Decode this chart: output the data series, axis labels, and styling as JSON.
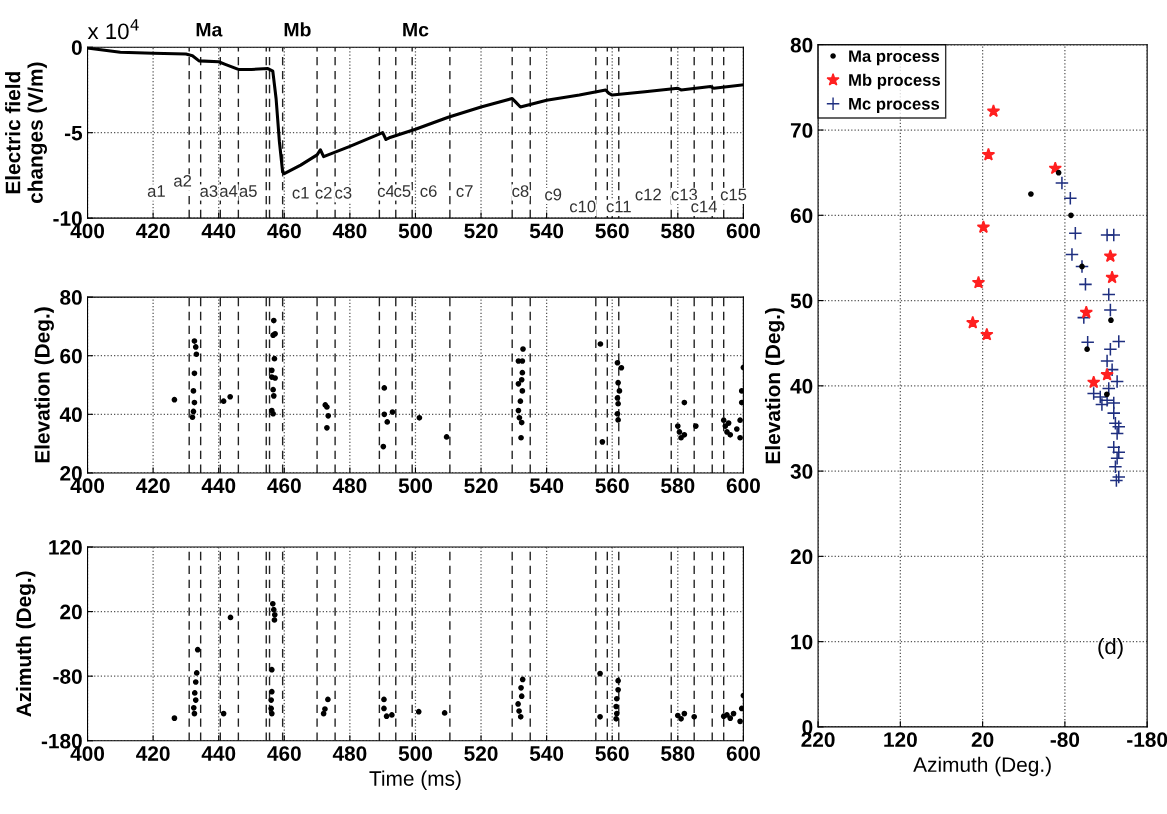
{
  "chart_data": [
    {
      "type": "line",
      "ylabel": "Electric field\nchanges (V/m)",
      "xlim": [
        400,
        600
      ],
      "xticks": [
        400,
        420,
        440,
        460,
        480,
        500,
        520,
        540,
        560,
        580,
        600
      ],
      "ylim": [
        -10,
        0
      ],
      "yticks": [
        -10,
        -5,
        0
      ],
      "grid": true,
      "line_style": "solid",
      "annotations": [
        "x 10$^{4}$",
        "Ma",
        "Mb",
        "Mc",
        {
          "text": "a1",
          "x": 421,
          "y": -8.5
        },
        {
          "text": "a2",
          "x": 429,
          "y": -7.9
        },
        {
          "text": "a3",
          "x": 437,
          "y": -8.5
        },
        {
          "text": "a4",
          "x": 443,
          "y": -8.5
        },
        {
          "text": "a5",
          "x": 449,
          "y": -8.5
        },
        {
          "text": "c1",
          "x": 465,
          "y": -8.6
        },
        {
          "text": "c2",
          "x": 472,
          "y": -8.6
        },
        {
          "text": "c3",
          "x": 478,
          "y": -8.6
        },
        {
          "text": "c4",
          "x": 491,
          "y": -8.5
        },
        {
          "text": "c5",
          "x": 496,
          "y": -8.5
        },
        {
          "text": "c6",
          "x": 504,
          "y": -8.5
        },
        {
          "text": "c7",
          "x": 515,
          "y": -8.5
        },
        {
          "text": "c8",
          "x": 532,
          "y": -8.5
        },
        {
          "text": "c9",
          "x": 542,
          "y": -8.7
        },
        {
          "text": "c10",
          "x": 551,
          "y": -9.4
        },
        {
          "text": "c11",
          "x": 562,
          "y": -9.4
        },
        {
          "text": "c12",
          "x": 571,
          "y": -8.7
        },
        {
          "text": "c13",
          "x": 582,
          "y": -8.7
        },
        {
          "text": "c14",
          "x": 588,
          "y": -9.4
        },
        {
          "text": "c15",
          "x": 597,
          "y": -8.7
        }
      ],
      "series": [
        {
          "color": "#000000",
          "x": [
            400,
            410,
            420,
            430,
            432,
            434,
            440,
            442,
            446,
            450,
            455,
            456.5,
            457.5,
            458.5,
            459.5,
            460,
            465,
            470,
            471,
            472,
            480,
            490,
            491,
            492,
            500,
            510,
            520,
            529.5,
            530.5,
            532,
            540,
            550,
            558,
            559,
            560,
            570,
            580,
            581,
            590,
            591,
            600
          ],
          "values": [
            -0.05,
            -0.3,
            -0.35,
            -0.4,
            -0.5,
            -0.8,
            -0.85,
            -1.0,
            -1.3,
            -1.3,
            -1.25,
            -1.4,
            -3.0,
            -5.5,
            -7.3,
            -7.4,
            -6.9,
            -6.3,
            -6.0,
            -6.4,
            -5.8,
            -5.0,
            -5.4,
            -5.3,
            -4.8,
            -4.1,
            -3.5,
            -3.0,
            -3.2,
            -3.5,
            -3.1,
            -2.8,
            -2.5,
            -2.7,
            -2.8,
            -2.6,
            -2.4,
            -2.5,
            -2.3,
            -2.4,
            -2.2
          ]
        }
      ],
      "ref_lines": [
        {
          "axis": "x",
          "value": 431,
          "line_style": "dashed"
        },
        {
          "axis": "x",
          "value": 434.5,
          "line_style": "dashed"
        },
        {
          "axis": "x",
          "value": 440.5,
          "line_style": "dashed"
        },
        {
          "axis": "x",
          "value": 446,
          "line_style": "dashed"
        },
        {
          "axis": "x",
          "value": 454.5,
          "line_style": "dashed"
        },
        {
          "axis": "x",
          "value": 455.5,
          "line_style": "dashed"
        },
        {
          "axis": "x",
          "value": 459.5,
          "line_style": "dashed"
        },
        {
          "axis": "x",
          "value": 470,
          "line_style": "dashed"
        },
        {
          "axis": "x",
          "value": 475.5,
          "line_style": "dashed"
        },
        {
          "axis": "x",
          "value": 489,
          "line_style": "dashed"
        },
        {
          "axis": "x",
          "value": 494,
          "line_style": "dashed"
        },
        {
          "axis": "x",
          "value": 499,
          "line_style": "dashed"
        },
        {
          "axis": "x",
          "value": 510.5,
          "line_style": "dashed"
        },
        {
          "axis": "x",
          "value": 529.5,
          "line_style": "dashed"
        },
        {
          "axis": "x",
          "value": 535,
          "line_style": "dashed"
        },
        {
          "axis": "x",
          "value": 555,
          "line_style": "dashed"
        },
        {
          "axis": "x",
          "value": 558.5,
          "line_style": "dashed"
        },
        {
          "axis": "x",
          "value": 562,
          "line_style": "dashed"
        },
        {
          "axis": "x",
          "value": 578,
          "line_style": "dashed"
        },
        {
          "axis": "x",
          "value": 585,
          "line_style": "dashed"
        },
        {
          "axis": "x",
          "value": 590.5,
          "line_style": "dashed"
        },
        {
          "axis": "x",
          "value": 594,
          "line_style": "dashed"
        }
      ]
    },
    {
      "type": "scatter",
      "ylabel": "Elevation (Deg.)",
      "xlim": [
        400,
        600
      ],
      "xticks": [
        400,
        420,
        440,
        460,
        480,
        500,
        520,
        540,
        560,
        580,
        600
      ],
      "ylim": [
        20,
        80
      ],
      "yticks": [
        20,
        40,
        60,
        80
      ],
      "grid": true,
      "marker": "circle",
      "series": [
        {
          "color": "#000000",
          "x": [
            426.5,
            432.6,
            433.2,
            433,
            432.6,
            432.3,
            432.6,
            432.3,
            432,
            441.5,
            443.5,
            456.8,
            456.6,
            457.2,
            457,
            456.2,
            456.2,
            457.2,
            456.6,
            456.8,
            456.2,
            456.6,
            472.5,
            473,
            473.4,
            473,
            490.5,
            490.5,
            491.4,
            493,
            490.2,
            501.2,
            509.5,
            531.4,
            532.6,
            532.8,
            532.6,
            532.4,
            531.4,
            532.6,
            532,
            531.4,
            531.7,
            532.4,
            532.2,
            556.4,
            557,
            561.6,
            562.8,
            561.8,
            562.2,
            561.6,
            561.8,
            561.6,
            561.8,
            580,
            580.5,
            581,
            582,
            582,
            585.5,
            594,
            594.5,
            595,
            595.5,
            596,
            598,
            599,
            599.5,
            599.5,
            600,
            599
          ],
          "values": [
            45,
            65,
            60.5,
            63,
            54,
            48,
            44,
            41,
            39,
            44.5,
            46,
            72,
            67,
            67.5,
            59,
            55,
            52.7,
            52.4,
            48.4,
            46.3,
            41.3,
            40.2,
            43.2,
            42.5,
            39.5,
            35.4,
            49,
            40,
            37.4,
            40.8,
            29,
            38.8,
            32.3,
            58.2,
            58.2,
            62.3,
            54.2,
            51.8,
            50.4,
            48,
            44.5,
            41.3,
            38.8,
            37.2,
            32,
            64,
            30.6,
            57.6,
            55.9,
            50.8,
            48,
            45.6,
            43.6,
            40.2,
            38.1,
            36,
            34,
            32,
            44,
            33,
            36,
            38,
            36,
            34,
            37,
            33,
            35,
            38,
            44,
            48,
            56,
            32
          ]
        }
      ],
      "ref_lines": [
        {
          "axis": "x",
          "value": 431,
          "line_style": "dashed"
        },
        {
          "axis": "x",
          "value": 434.5,
          "line_style": "dashed"
        },
        {
          "axis": "x",
          "value": 440.5,
          "line_style": "dashed"
        },
        {
          "axis": "x",
          "value": 446,
          "line_style": "dashed"
        },
        {
          "axis": "x",
          "value": 454.5,
          "line_style": "dashed"
        },
        {
          "axis": "x",
          "value": 455.5,
          "line_style": "dashed"
        },
        {
          "axis": "x",
          "value": 459.5,
          "line_style": "dashed"
        },
        {
          "axis": "x",
          "value": 470,
          "line_style": "dashed"
        },
        {
          "axis": "x",
          "value": 475.5,
          "line_style": "dashed"
        },
        {
          "axis": "x",
          "value": 489,
          "line_style": "dashed"
        },
        {
          "axis": "x",
          "value": 494,
          "line_style": "dashed"
        },
        {
          "axis": "x",
          "value": 499,
          "line_style": "dashed"
        },
        {
          "axis": "x",
          "value": 510.5,
          "line_style": "dashed"
        },
        {
          "axis": "x",
          "value": 529.5,
          "line_style": "dashed"
        },
        {
          "axis": "x",
          "value": 535,
          "line_style": "dashed"
        },
        {
          "axis": "x",
          "value": 555,
          "line_style": "dashed"
        },
        {
          "axis": "x",
          "value": 558.5,
          "line_style": "dashed"
        },
        {
          "axis": "x",
          "value": 562,
          "line_style": "dashed"
        },
        {
          "axis": "x",
          "value": 578,
          "line_style": "dashed"
        },
        {
          "axis": "x",
          "value": 585,
          "line_style": "dashed"
        },
        {
          "axis": "x",
          "value": 590.5,
          "line_style": "dashed"
        },
        {
          "axis": "x",
          "value": 594,
          "line_style": "dashed"
        }
      ]
    },
    {
      "type": "scatter",
      "xlabel": "Time (ms)",
      "ylabel": "Azimuth (Deg.)",
      "xlim": [
        400,
        600
      ],
      "xticks": [
        400,
        420,
        440,
        460,
        480,
        500,
        520,
        540,
        560,
        580,
        600
      ],
      "ylim": [
        -180,
        120
      ],
      "yticks": [
        -180,
        -80,
        20,
        120
      ],
      "grid": true,
      "marker": "circle",
      "series": [
        {
          "color": "#000000",
          "x": [
            426.5,
            432.6,
            432.4,
            433,
            432.7,
            433,
            433.3,
            433.6,
            441.5,
            443.6,
            456.5,
            456.8,
            457.1,
            457,
            456.2,
            456.2,
            456,
            456,
            456.2,
            473.3,
            472.4,
            472,
            490.4,
            490.4,
            491.2,
            492.8,
            501,
            508.9,
            532.7,
            532.2,
            532.4,
            531.3,
            531.6,
            532.1,
            556.3,
            556.3,
            561.8,
            561.8,
            561.4,
            561.2,
            561.4,
            561.2,
            580,
            581,
            582,
            585,
            594,
            595,
            596,
            597,
            599,
            599.5,
            600
          ],
          "values": [
            -145,
            -138,
            -129,
            -117,
            -106,
            -89,
            -75,
            -39,
            -138,
            11,
            32,
            23,
            15,
            7,
            -70,
            -104,
            -117,
            -130,
            -138,
            -116,
            -131,
            -138,
            -116,
            -130,
            -142,
            -140,
            -135,
            -137,
            -85,
            -98,
            -111,
            -123,
            -134,
            -143,
            -76,
            -143,
            -87,
            -101,
            -115,
            -127,
            -138,
            -146,
            -141,
            -146,
            -138,
            -143,
            -142,
            -140,
            -145,
            -138,
            -150,
            -130,
            -110
          ]
        }
      ],
      "ref_lines": [
        {
          "axis": "x",
          "value": 431,
          "line_style": "dashed"
        },
        {
          "axis": "x",
          "value": 434.5,
          "line_style": "dashed"
        },
        {
          "axis": "x",
          "value": 440.5,
          "line_style": "dashed"
        },
        {
          "axis": "x",
          "value": 446,
          "line_style": "dashed"
        },
        {
          "axis": "x",
          "value": 454.5,
          "line_style": "dashed"
        },
        {
          "axis": "x",
          "value": 455.5,
          "line_style": "dashed"
        },
        {
          "axis": "x",
          "value": 459.5,
          "line_style": "dashed"
        },
        {
          "axis": "x",
          "value": 470,
          "line_style": "dashed"
        },
        {
          "axis": "x",
          "value": 475.5,
          "line_style": "dashed"
        },
        {
          "axis": "x",
          "value": 489,
          "line_style": "dashed"
        },
        {
          "axis": "x",
          "value": 494,
          "line_style": "dashed"
        },
        {
          "axis": "x",
          "value": 499,
          "line_style": "dashed"
        },
        {
          "axis": "x",
          "value": 510.5,
          "line_style": "dashed"
        },
        {
          "axis": "x",
          "value": 529.5,
          "line_style": "dashed"
        },
        {
          "axis": "x",
          "value": 535,
          "line_style": "dashed"
        },
        {
          "axis": "x",
          "value": 555,
          "line_style": "dashed"
        },
        {
          "axis": "x",
          "value": 558.5,
          "line_style": "dashed"
        },
        {
          "axis": "x",
          "value": 562,
          "line_style": "dashed"
        },
        {
          "axis": "x",
          "value": 578,
          "line_style": "dashed"
        },
        {
          "axis": "x",
          "value": 585,
          "line_style": "dashed"
        },
        {
          "axis": "x",
          "value": 590.5,
          "line_style": "dashed"
        },
        {
          "axis": "x",
          "value": 594,
          "line_style": "dashed"
        }
      ]
    },
    {
      "type": "scatter",
      "xlabel": "Azimuth (Deg.)",
      "ylabel": "Elevation (Deg.)",
      "xlim": [
        220,
        -180
      ],
      "xticks": [
        220,
        120,
        20,
        -80,
        -180
      ],
      "ylim": [
        0,
        80
      ],
      "yticks": [
        0,
        10,
        20,
        30,
        40,
        50,
        60,
        70,
        80
      ],
      "grid": true,
      "legend": "top left",
      "annotations": [
        "(d)"
      ],
      "series": [
        {
          "name": "Ma process",
          "color": "#000000",
          "marker": "circle",
          "x": [
            -38.7,
            -72.4,
            -87.4,
            -100.8,
            -107,
            -136,
            -131
          ],
          "values": [
            62.5,
            65,
            60,
            54,
            44.3,
            47.7,
            39
          ]
        },
        {
          "name": "Mb process",
          "color": "#ff2020",
          "marker": "star",
          "x": [
            6.8,
            12.9,
            19,
            25,
            32,
            14.9,
            -68.3,
            -135.3,
            -137.4,
            -106,
            -131.3,
            -115
          ],
          "values": [
            72.2,
            67.1,
            58.6,
            52.1,
            47.4,
            46,
            65.5,
            55.2,
            52.7,
            48.6,
            41.3,
            40.4
          ]
        },
        {
          "name": "Mc process",
          "color": "#1f2f80",
          "marker": "cross",
          "x": [
            -76.4,
            -86.6,
            -92.7,
            -88.6,
            -100.8,
            -105,
            -103,
            -107.7,
            -131.3,
            -139.4,
            -133.3,
            -135.3,
            -145.5,
            -135.3,
            -131.3,
            -137.4,
            -143.5,
            -115,
            -123,
            -131.3,
            -139.4,
            -139.4,
            -141.4,
            -145.5,
            -143.5,
            -139.4,
            -145.5,
            -143.5,
            -141.4,
            -145.5,
            -142.6,
            -133.3,
            -125
          ],
          "values": [
            63.8,
            62,
            57.9,
            55.4,
            54,
            51.9,
            48,
            45.1,
            57.7,
            57.7,
            50.7,
            48.9,
            45.2,
            44.3,
            42.9,
            41.9,
            40.5,
            39.1,
            38.7,
            38.3,
            38,
            36.8,
            35.6,
            35.2,
            34.4,
            32.8,
            32.2,
            31.5,
            30.5,
            29.3,
            28.9,
            39.7,
            37.8
          ]
        }
      ]
    }
  ]
}
